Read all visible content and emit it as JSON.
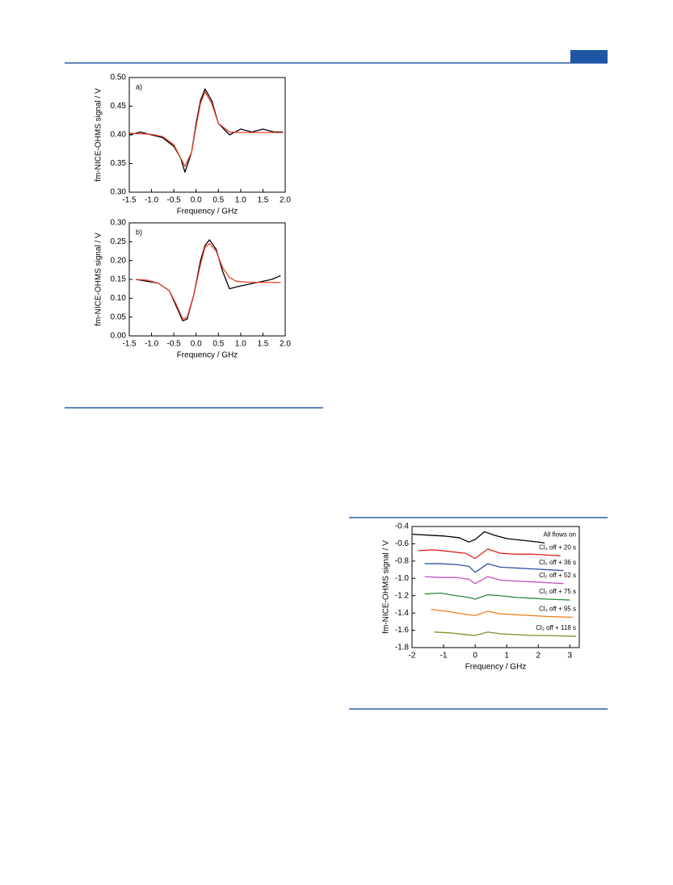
{
  "chart_data": [
    {
      "type": "line",
      "annotation": "a)",
      "xlabel": "Frequency / GHz",
      "ylabel": "fm-NICE-OHMS signal / V",
      "xlim": [
        -1.5,
        2.0
      ],
      "ylim": [
        0.3,
        0.5
      ],
      "xticks": [
        -1.5,
        {
          "value": -1.0,
          "label": "-1.0"
        },
        -0.5,
        {
          "value": 0.0,
          "label": "0.0"
        },
        0.5,
        {
          "value": 1.0,
          "label": "1.0"
        },
        1.5,
        {
          "value": 2.0,
          "label": "2.0"
        }
      ],
      "yticks": [
        {
          "value": 0.3,
          "label": "0.30"
        },
        0.35,
        {
          "value": 0.4,
          "label": "0.40"
        },
        0.45,
        {
          "value": 0.5,
          "label": "0.50"
        }
      ],
      "series": [
        {
          "color": "#000000",
          "x": [
            -1.5,
            -1.25,
            -1.0,
            -0.75,
            -0.5,
            -0.35,
            -0.25,
            -0.1,
            0.0,
            0.1,
            0.2,
            0.35,
            0.5,
            0.75,
            1.0,
            1.25,
            1.5,
            1.75,
            1.95
          ],
          "values": [
            0.4,
            0.405,
            0.4,
            0.395,
            0.38,
            0.36,
            0.335,
            0.37,
            0.42,
            0.46,
            0.48,
            0.46,
            0.42,
            0.4,
            0.41,
            0.405,
            0.41,
            0.405,
            0.405
          ]
        },
        {
          "color": "#e8402a",
          "x": [
            -1.5,
            -1.25,
            -1.0,
            -0.75,
            -0.5,
            -0.35,
            -0.25,
            -0.1,
            0.0,
            0.1,
            0.2,
            0.35,
            0.5,
            0.75,
            1.0,
            1.25,
            1.5,
            1.75,
            1.95
          ],
          "values": [
            0.403,
            0.402,
            0.401,
            0.397,
            0.383,
            0.36,
            0.345,
            0.37,
            0.415,
            0.455,
            0.475,
            0.455,
            0.42,
            0.405,
            0.404,
            0.404,
            0.404,
            0.404,
            0.404
          ]
        }
      ]
    },
    {
      "type": "line",
      "annotation": "b)",
      "xlabel": "Frequency / GHz",
      "ylabel": "fm-NICE-OHMS signal / V",
      "xlim": [
        -1.5,
        2.0
      ],
      "ylim": [
        0.0,
        0.3
      ],
      "xticks": [
        -1.5,
        {
          "value": -1.0,
          "label": "-1.0"
        },
        -0.5,
        {
          "value": 0.0,
          "label": "0.0"
        },
        0.5,
        {
          "value": 1.0,
          "label": "1.0"
        },
        1.5,
        {
          "value": 2.0,
          "label": "2.0"
        }
      ],
      "yticks": [
        {
          "value": 0.0,
          "label": "0.00"
        },
        0.05,
        {
          "value": 0.1,
          "label": "0.10"
        },
        0.15,
        {
          "value": 0.2,
          "label": "0.20"
        },
        0.25,
        {
          "value": 0.3,
          "label": "0.30"
        }
      ],
      "series": [
        {
          "color": "#000000",
          "x": [
            -1.35,
            -1.1,
            -0.85,
            -0.6,
            -0.45,
            -0.3,
            -0.2,
            -0.05,
            0.1,
            0.2,
            0.3,
            0.45,
            0.6,
            0.75,
            0.9,
            1.1,
            1.3,
            1.5,
            1.7,
            1.9
          ],
          "values": [
            0.15,
            0.145,
            0.14,
            0.12,
            0.08,
            0.04,
            0.045,
            0.11,
            0.2,
            0.24,
            0.255,
            0.23,
            0.17,
            0.125,
            0.13,
            0.135,
            0.14,
            0.145,
            0.15,
            0.16
          ]
        },
        {
          "color": "#e8402a",
          "x": [
            -1.35,
            -1.1,
            -0.85,
            -0.6,
            -0.45,
            -0.3,
            -0.2,
            -0.05,
            0.1,
            0.2,
            0.3,
            0.45,
            0.6,
            0.75,
            0.9,
            1.1,
            1.3,
            1.5,
            1.7,
            1.9
          ],
          "values": [
            0.15,
            0.148,
            0.14,
            0.12,
            0.085,
            0.045,
            0.05,
            0.11,
            0.19,
            0.235,
            0.245,
            0.225,
            0.18,
            0.155,
            0.145,
            0.143,
            0.142,
            0.142,
            0.142,
            0.142
          ]
        }
      ]
    },
    {
      "type": "line",
      "xlabel": "Frequency / GHz",
      "ylabel": "fm-NICE-OHMS signal / V",
      "xlim": [
        -2,
        3.3
      ],
      "ylim": [
        -1.8,
        -0.4
      ],
      "xticks": [
        -2,
        -1,
        0,
        1,
        2,
        3
      ],
      "yticks": [
        -1.8,
        -1.6,
        -1.4,
        -1.2,
        {
          "value": -1.0,
          "label": "-1.0"
        },
        -0.8,
        -0.6,
        -0.4
      ],
      "series": [
        {
          "name": "All flows on",
          "color": "#000000",
          "x": [
            -2,
            -1.5,
            -1,
            -0.5,
            -0.2,
            0,
            0.3,
            0.6,
            1,
            1.5,
            2,
            2.2
          ],
          "values": [
            -0.49,
            -0.5,
            -0.51,
            -0.53,
            -0.58,
            -0.55,
            -0.46,
            -0.5,
            -0.54,
            -0.56,
            -0.58,
            -0.59
          ]
        },
        {
          "name": "Cl₂ off + 20 s",
          "color": "#e02020",
          "x": [
            -1.8,
            -1.3,
            -0.8,
            -0.3,
            0,
            0.4,
            0.8,
            1.3,
            1.8,
            2.3,
            2.7
          ],
          "values": [
            -0.68,
            -0.67,
            -0.69,
            -0.71,
            -0.77,
            -0.66,
            -0.71,
            -0.72,
            -0.72,
            -0.73,
            -0.74
          ]
        },
        {
          "name": "Cl₂ off + 36 s",
          "color": "#3050a8",
          "x": [
            -1.6,
            -1.1,
            -0.6,
            -0.2,
            0,
            0.4,
            0.8,
            1.3,
            1.8,
            2.3,
            2.8
          ],
          "values": [
            -0.83,
            -0.83,
            -0.84,
            -0.86,
            -0.93,
            -0.83,
            -0.87,
            -0.88,
            -0.89,
            -0.9,
            -0.91
          ]
        },
        {
          "name": "Cl₂ off + 52 s",
          "color": "#c050c0",
          "x": [
            -1.6,
            -1.1,
            -0.6,
            -0.2,
            0,
            0.4,
            0.8,
            1.3,
            1.8,
            2.3,
            2.8
          ],
          "values": [
            -0.98,
            -0.99,
            -0.99,
            -1.01,
            -1.06,
            -0.98,
            -1.02,
            -1.03,
            -1.04,
            -1.05,
            -1.06
          ]
        },
        {
          "name": "Cl₂ off + 75 s",
          "color": "#2e8b3c",
          "x": [
            -1.6,
            -1.1,
            -0.6,
            -0.2,
            0,
            0.4,
            0.8,
            1.3,
            1.8,
            2.3,
            3.0
          ],
          "values": [
            -1.18,
            -1.17,
            -1.2,
            -1.22,
            -1.24,
            -1.19,
            -1.2,
            -1.22,
            -1.23,
            -1.24,
            -1.25
          ]
        },
        {
          "name": "Cl₂ off + 95 s",
          "color": "#f08020",
          "x": [
            -1.4,
            -0.9,
            -0.4,
            0,
            0.4,
            0.8,
            1.3,
            1.8,
            2.3,
            3.1
          ],
          "values": [
            -1.36,
            -1.38,
            -1.41,
            -1.43,
            -1.38,
            -1.41,
            -1.42,
            -1.43,
            -1.44,
            -1.45
          ]
        },
        {
          "name": "Cl₂ off + 118 s",
          "color": "#8a8a30",
          "x": [
            -1.3,
            -0.8,
            -0.3,
            0,
            0.4,
            0.8,
            1.3,
            1.8,
            2.3,
            3.2
          ],
          "values": [
            -1.62,
            -1.63,
            -1.65,
            -1.66,
            -1.62,
            -1.64,
            -1.65,
            -1.66,
            -1.66,
            -1.67
          ]
        }
      ]
    }
  ]
}
